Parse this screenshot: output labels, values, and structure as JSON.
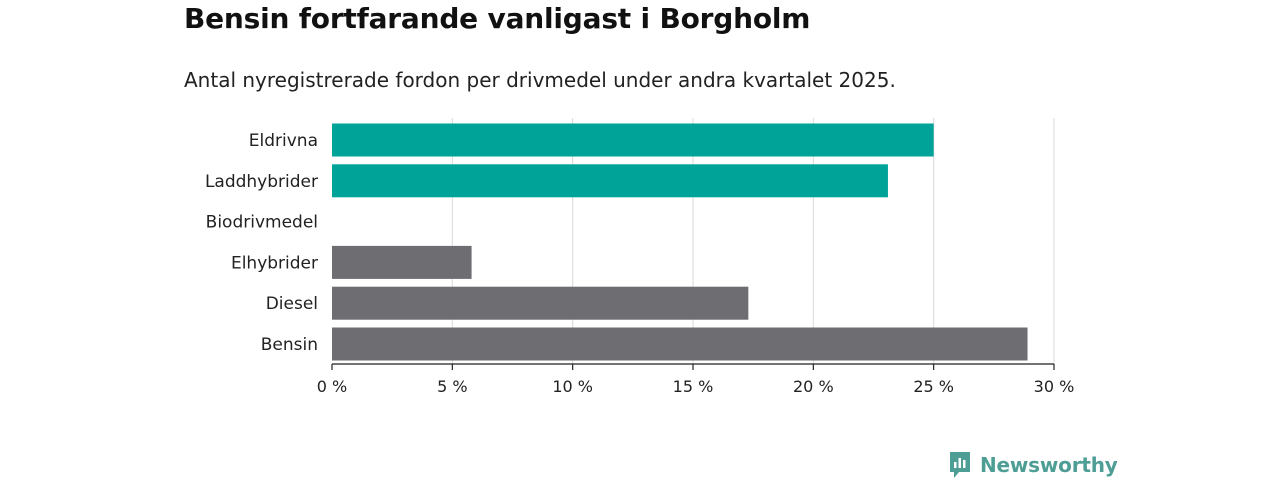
{
  "title": "Bensin fortfarande vanligast i Borgholm",
  "subtitle": "Antal nyregistrerade fordon per drivmedel under andra kvartalet 2025.",
  "colors": {
    "highlight": "#00a398",
    "default": "#6e6d72",
    "grid": "#d9d9d9",
    "axis": "#222222"
  },
  "chart_data": {
    "type": "bar",
    "orientation": "horizontal",
    "title": "Bensin fortfarande vanligast i Borgholm",
    "subtitle": "Antal nyregistrerade fordon per drivmedel under andra kvartalet 2025.",
    "categories": [
      "Eldrivna",
      "Laddhybrider",
      "Biodrivmedel",
      "Elhybrider",
      "Diesel",
      "Bensin"
    ],
    "values": [
      25.0,
      23.1,
      0,
      5.8,
      17.3,
      28.9
    ],
    "bar_colors": [
      "highlight",
      "highlight",
      "default",
      "default",
      "default",
      "default"
    ],
    "xlim": [
      0,
      30
    ],
    "ticks": [
      0,
      5,
      10,
      15,
      20,
      25,
      30
    ],
    "tick_labels": [
      "0 %",
      "5 %",
      "10 %",
      "15 %",
      "20 %",
      "25 %",
      "30 %"
    ],
    "grid": "vertical"
  },
  "brand": {
    "name": "Newsworthy",
    "icon": "bar-chart-icon",
    "color": "#4e9e96"
  }
}
